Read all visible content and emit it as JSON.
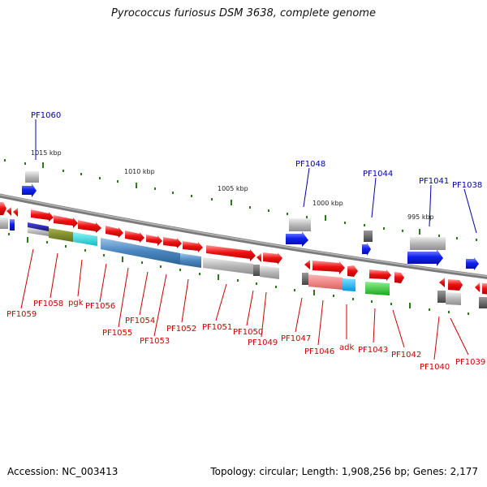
{
  "title": "Pyrococcus furiosus DSM 3638, complete genome",
  "footer": {
    "accession": "Accession: NC_003413",
    "topology": "Topology: circular; Length: 1,908,256 bp; Genes: 2,177"
  },
  "scale_labels": [
    "1015 kbp",
    "1010 kbp",
    "1005 kbp",
    "1000 kbp",
    "995 kbp"
  ],
  "gene_labels_above": [
    "PF1060",
    "PF1048",
    "PF1044",
    "PF1041",
    "PF1038"
  ],
  "gene_labels_below": [
    "PF1059",
    "PF1058",
    "pgk",
    "PF1056",
    "PF1055",
    "PF1054",
    "PF1053",
    "PF1052",
    "PF1051",
    "PF1050",
    "PF1049",
    "PF1047",
    "PF1046",
    "adk",
    "PF1043",
    "PF1042",
    "PF1040",
    "PF1039"
  ],
  "colors": {
    "above_label": "#0000aa",
    "below_label": "#cc0000",
    "backbone": "#808080",
    "gene_forward": "#ee1111",
    "gene_reverse": "#1122ee",
    "tick": "#2a7a1a"
  }
}
